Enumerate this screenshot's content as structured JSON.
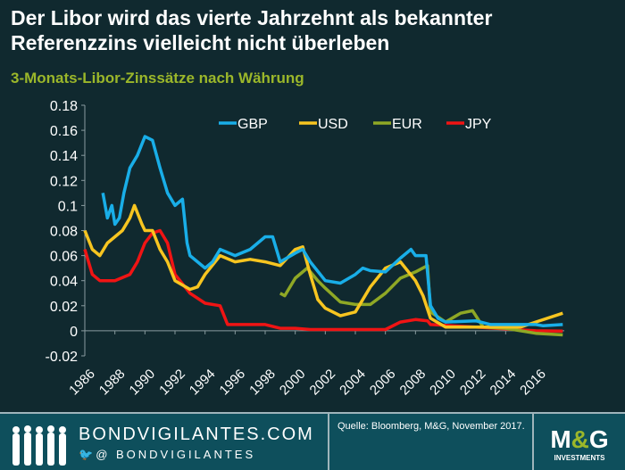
{
  "title": "Der Libor wird das vierte Jahrzehnt als bekannter Referenzzins vielleicht nicht überleben",
  "subtitle": "3-Monats-Libor-Zinssätze nach Währung",
  "footer": {
    "brand": "BONDVIGILANTES.COM",
    "handle": "@ BONDVIGILANTES",
    "source": "Quelle: Bloomberg, M&G, November 2017.",
    "logo": "M&G INVESTMENTS"
  },
  "chart_data": {
    "type": "line",
    "title": "3-Monats-Libor-Zinssätze nach Währung",
    "legend_position": "top",
    "grid": false,
    "xlim": [
      1986,
      2017.9
    ],
    "ylim": [
      -0.02,
      0.18
    ],
    "xticks": [
      "1986",
      "1988",
      "1990",
      "1992",
      "1994",
      "1996",
      "1998",
      "2000",
      "2002",
      "2004",
      "2006",
      "2008",
      "2010",
      "2012",
      "2014",
      "2016"
    ],
    "yticks": [
      "-0.02",
      "0",
      "0.02",
      "0.04",
      "0.06",
      "0.08",
      "0.1",
      "0.12",
      "0.14",
      "0.16",
      "0.18"
    ],
    "series": [
      {
        "name": "GBP",
        "color": "#19aee8",
        "x": [
          1987.2,
          1987.5,
          1987.8,
          1988.0,
          1988.3,
          1988.6,
          1989,
          1989.5,
          1990,
          1990.5,
          1991,
          1991.5,
          1992,
          1992.5,
          1992.8,
          1993,
          1994,
          1994.5,
          1995,
          1996,
          1997,
          1998,
          1998.5,
          1999,
          2000,
          2000.5,
          2001,
          2002,
          2003,
          2004,
          2004.5,
          2005,
          2006,
          2007,
          2007.7,
          2008,
          2008.7,
          2009,
          2009.5,
          2010,
          2012,
          2013,
          2016,
          2016.5,
          2017.8
        ],
        "y": [
          0.11,
          0.09,
          0.1,
          0.085,
          0.09,
          0.11,
          0.13,
          0.14,
          0.155,
          0.152,
          0.13,
          0.11,
          0.1,
          0.105,
          0.07,
          0.06,
          0.05,
          0.055,
          0.065,
          0.06,
          0.065,
          0.075,
          0.075,
          0.055,
          0.062,
          0.065,
          0.055,
          0.04,
          0.038,
          0.045,
          0.05,
          0.048,
          0.047,
          0.058,
          0.065,
          0.06,
          0.06,
          0.02,
          0.01,
          0.007,
          0.008,
          0.005,
          0.005,
          0.004,
          0.005
        ]
      },
      {
        "name": "USD",
        "color": "#f7c520",
        "x": [
          1986,
          1986.5,
          1987,
          1987.5,
          1988,
          1988.5,
          1989,
          1989.3,
          1989.8,
          1990,
          1990.5,
          1991,
          1991.5,
          1992,
          1993,
          1993.5,
          1994,
          1995,
          1996,
          1997,
          1998,
          1999,
          2000,
          2000.5,
          2001,
          2001.5,
          2002,
          2003,
          2004,
          2005,
          2006,
          2007,
          2008,
          2008.5,
          2009,
          2010,
          2015,
          2016,
          2017.8
        ],
        "y": [
          0.08,
          0.065,
          0.06,
          0.07,
          0.075,
          0.08,
          0.09,
          0.1,
          0.085,
          0.08,
          0.08,
          0.065,
          0.055,
          0.04,
          0.033,
          0.035,
          0.045,
          0.06,
          0.055,
          0.057,
          0.055,
          0.052,
          0.065,
          0.067,
          0.045,
          0.025,
          0.018,
          0.012,
          0.015,
          0.035,
          0.05,
          0.055,
          0.04,
          0.028,
          0.01,
          0.003,
          0.003,
          0.007,
          0.014
        ]
      },
      {
        "name": "EUR",
        "color": "#8fa825",
        "x": [
          1999,
          1999.3,
          2000,
          2000.8,
          2001.5,
          2002,
          2003,
          2004,
          2005,
          2006,
          2007,
          2008,
          2008.8,
          2009,
          2010,
          2011,
          2011.8,
          2012.5,
          2014,
          2015,
          2016,
          2017.8
        ],
        "y": [
          0.03,
          0.028,
          0.042,
          0.05,
          0.04,
          0.034,
          0.023,
          0.021,
          0.021,
          0.03,
          0.042,
          0.047,
          0.052,
          0.015,
          0.007,
          0.014,
          0.016,
          0.003,
          0.002,
          0.0,
          -0.002,
          -0.0033
        ]
      },
      {
        "name": "JPY",
        "color": "#f01414",
        "x": [
          1986,
          1986.5,
          1987,
          1988,
          1989,
          1989.5,
          1990,
          1990.5,
          1991,
          1991.5,
          1992,
          1993,
          1994,
          1995,
          1995.5,
          1996,
          1998,
          1999,
          2000,
          2001,
          2006,
          2007,
          2008,
          2008.8,
          2009,
          2012,
          2016,
          2017.8
        ],
        "y": [
          0.065,
          0.045,
          0.04,
          0.04,
          0.045,
          0.055,
          0.07,
          0.078,
          0.08,
          0.07,
          0.045,
          0.03,
          0.022,
          0.02,
          0.005,
          0.005,
          0.005,
          0.002,
          0.002,
          0.001,
          0.001,
          0.007,
          0.009,
          0.008,
          0.005,
          0.003,
          0.0,
          -0.0002
        ]
      }
    ]
  }
}
